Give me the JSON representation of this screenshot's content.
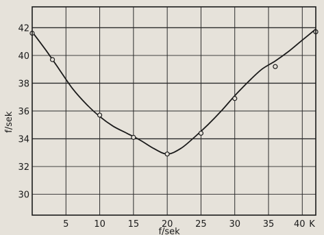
{
  "chart_data": {
    "type": "line",
    "title": "",
    "xlabel": "f/sek",
    "ylabel": "f/sek",
    "x_corner_label": "K",
    "xlim": [
      0,
      42
    ],
    "ylim": [
      28.5,
      43.5
    ],
    "xticks": [
      5,
      10,
      15,
      20,
      25,
      30,
      35,
      40
    ],
    "yticks": [
      30,
      32,
      34,
      36,
      38,
      40,
      42
    ],
    "grid": true,
    "curve": {
      "x": [
        0,
        2,
        4,
        6,
        8,
        10,
        12,
        14,
        16,
        18,
        20,
        22,
        24,
        26,
        28,
        30,
        32,
        34,
        36,
        38,
        40,
        42
      ],
      "values": [
        41.7,
        40.4,
        39.0,
        37.6,
        36.5,
        35.6,
        34.9,
        34.4,
        33.9,
        33.3,
        32.9,
        33.3,
        34.1,
        35.0,
        36.0,
        37.1,
        38.1,
        39.0,
        39.6,
        40.3,
        41.1,
        41.9
      ]
    },
    "points": {
      "x": [
        0,
        3,
        10,
        15,
        20,
        25,
        30,
        36,
        42
      ],
      "values": [
        41.6,
        39.7,
        35.7,
        34.1,
        32.9,
        34.4,
        36.9,
        39.2,
        41.7
      ]
    },
    "colors": {
      "ink": "#1a1a1a",
      "paper": "#e6e2da",
      "grid": "#2a2a2a"
    }
  }
}
